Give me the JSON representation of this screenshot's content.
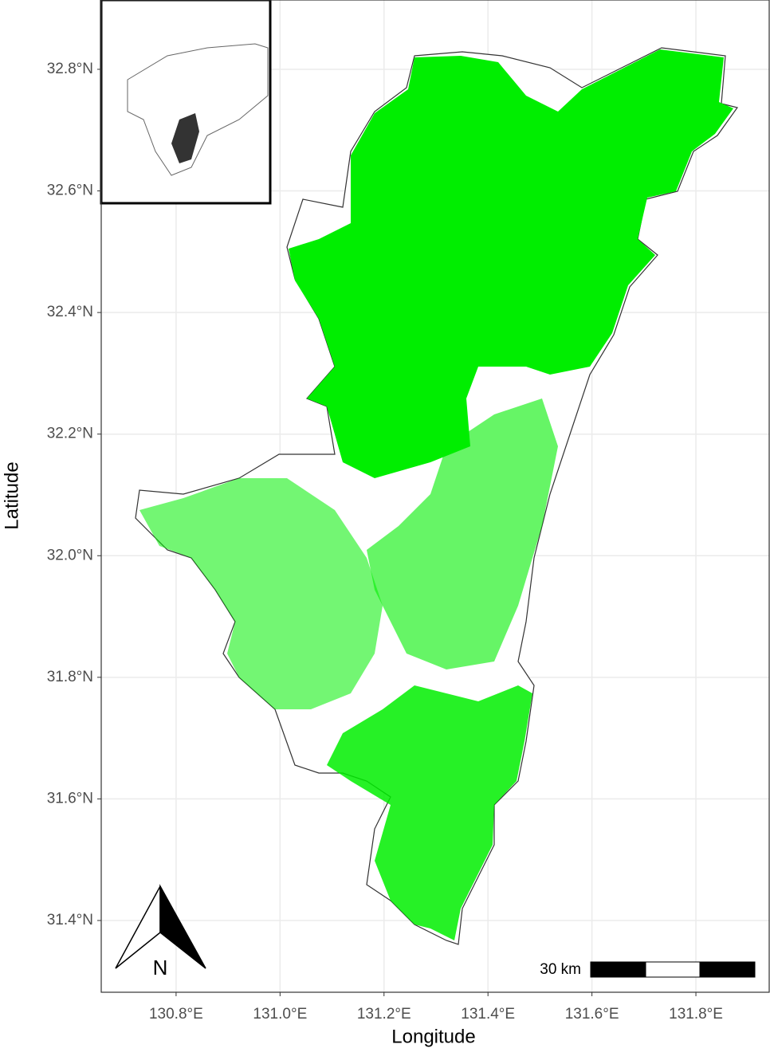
{
  "map": {
    "x_label": "Longitude",
    "y_label": "Latitude",
    "xlim": [
      130.656,
      131.941
    ],
    "ylim": [
      31.282,
      32.914
    ],
    "xticks": [
      {
        "value": 130.8,
        "label": "130.8°E"
      },
      {
        "value": 131.0,
        "label": "131.0°E"
      },
      {
        "value": 131.2,
        "label": "131.2°E"
      },
      {
        "value": 131.4,
        "label": "131.4°E"
      },
      {
        "value": 131.6,
        "label": "131.6°E"
      },
      {
        "value": 131.8,
        "label": "131.8°E"
      }
    ],
    "yticks": [
      {
        "value": 32.8,
        "label": "32.8°N"
      },
      {
        "value": 32.6,
        "label": "32.6°N"
      },
      {
        "value": 32.4,
        "label": "32.4°N"
      },
      {
        "value": 32.2,
        "label": "32.2°N"
      },
      {
        "value": 32.0,
        "label": "32.0°N"
      },
      {
        "value": 31.8,
        "label": "31.8°N"
      },
      {
        "value": 31.6,
        "label": "31.6°N"
      },
      {
        "value": 31.4,
        "label": "31.4°N"
      }
    ],
    "grid": true,
    "scale_bar": "30 km",
    "north_label": "N"
  }
}
